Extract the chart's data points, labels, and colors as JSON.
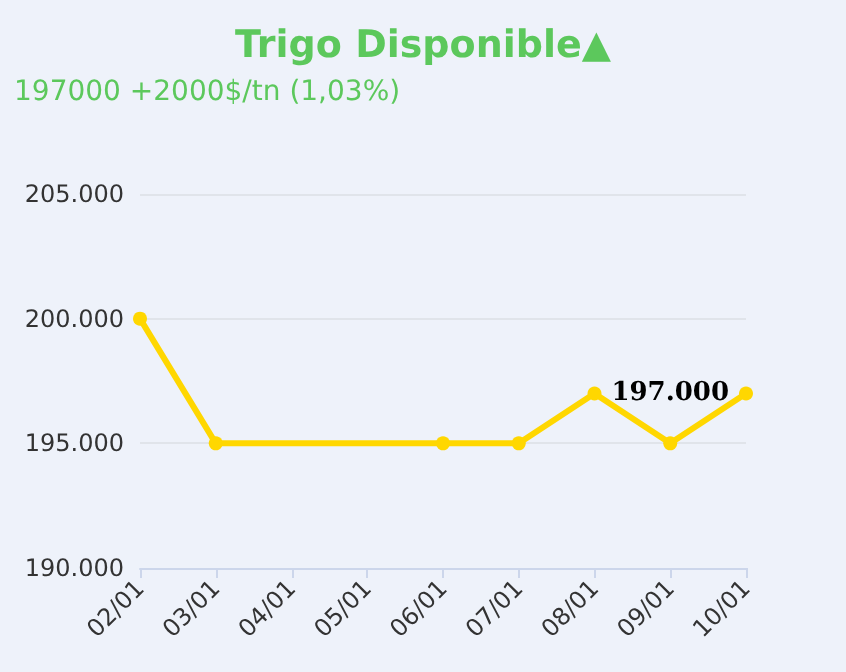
{
  "chart_data": {
    "type": "line",
    "title": "Trigo Disponible▲",
    "subtitle": "197000 +2000$/tn (1,03%)",
    "x": [
      "--01-02",
      "--01-03",
      "--01-06",
      "--01-07",
      "--01-08",
      "--01-09",
      "--01-10"
    ],
    "series": [
      {
        "color": "#ffd700",
        "values": [
          200000,
          195000,
          195000,
          195000,
          197000,
          195000,
          197000
        ],
        "value_labels": [
          null,
          null,
          null,
          null,
          null,
          null,
          "197.000"
        ]
      }
    ],
    "xlim": [
      "--01-02",
      "--01-10"
    ],
    "xticks": [
      {
        "value": "--01-02",
        "label": "02/01"
      },
      {
        "value": "--01-03",
        "label": "03/01"
      },
      {
        "value": "--01-04",
        "label": "04/01"
      },
      {
        "value": "--01-05",
        "label": "05/01"
      },
      {
        "value": "--01-06",
        "label": "06/01"
      },
      {
        "value": "--01-07",
        "label": "07/01"
      },
      {
        "value": "--01-08",
        "label": "08/01"
      },
      {
        "value": "--01-09",
        "label": "09/01"
      },
      {
        "value": "--01-10",
        "label": "10/01"
      }
    ],
    "ylim": [
      190000,
      205000
    ],
    "yticks": [
      {
        "value": 190000,
        "label": "190.000"
      },
      {
        "value": 195000,
        "label": "195.000"
      },
      {
        "value": 200000,
        "label": "200.000"
      },
      {
        "value": 205000,
        "label": "205.000"
      }
    ],
    "grid": "y",
    "marker": "circle",
    "line_style": "solid"
  }
}
